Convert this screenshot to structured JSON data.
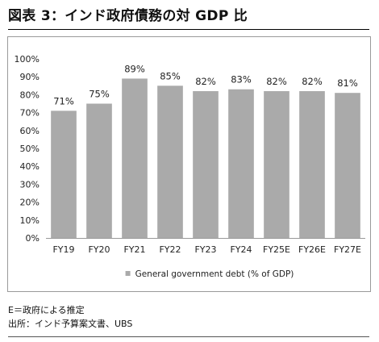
{
  "header": {
    "title": "図表 3：インド政府債務の対 GDP 比"
  },
  "chart_data": {
    "type": "bar",
    "categories": [
      "FY19",
      "FY20",
      "FY21",
      "FY22",
      "FY23",
      "FY24",
      "FY25E",
      "FY26E",
      "FY27E"
    ],
    "values": [
      71,
      75,
      89,
      85,
      82,
      83,
      82,
      82,
      81
    ],
    "data_labels": [
      "71%",
      "75%",
      "89%",
      "85%",
      "82%",
      "83%",
      "82%",
      "82%",
      "81%"
    ],
    "series": [
      {
        "name": "General government debt (% of GDP)",
        "values": [
          71,
          75,
          89,
          85,
          82,
          83,
          82,
          82,
          81
        ]
      }
    ],
    "y_ticks": [
      "0%",
      "10%",
      "20%",
      "30%",
      "40%",
      "50%",
      "60%",
      "70%",
      "80%",
      "90%",
      "100%"
    ],
    "ylim": [
      0,
      100
    ],
    "grid": false,
    "legend_position": "bottom",
    "colors": {
      "bar": "#aaaaaa",
      "legend_marker": "#aaaaaa",
      "axis": "#999999",
      "text": "#222222"
    }
  },
  "footnotes": {
    "note": "E＝政府による推定",
    "source": "出所：インド予算案文書、UBS"
  }
}
